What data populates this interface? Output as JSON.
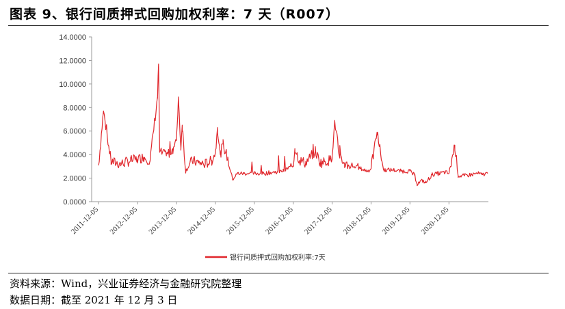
{
  "header": {
    "title": "图表 9、银行间质押式回购加权利率：7 天（R007）"
  },
  "footer": {
    "source": "资料来源：Wind，兴业证券经济与金融研究院整理",
    "date": "数据日期：截至 2021 年 12 月 3 日"
  },
  "chart_data": {
    "type": "line",
    "title": "",
    "xlabel": "",
    "ylabel": "",
    "ylim": [
      0,
      14
    ],
    "yticks": [
      "0.0000",
      "2.0000",
      "4.0000",
      "6.0000",
      "8.0000",
      "10.0000",
      "12.0000",
      "14.0000"
    ],
    "xticks": [
      "2011-12-05",
      "2012-12-05",
      "2013-12-05",
      "2014-12-05",
      "2015-12-05",
      "2016-12-05",
      "2017-12-05",
      "2018-12-05",
      "2019-12-05",
      "2020-12-05"
    ],
    "legend": "bottom-center",
    "grid": false,
    "series": [
      {
        "name": "银行间质押式回购加权利率:7天",
        "color": "#e0262b",
        "x": [
          "2011-12-05",
          "2012-01-20",
          "2012-03-31",
          "2012-06-30",
          "2012-09-30",
          "2012-12-05",
          "2013-02-01",
          "2013-04-01",
          "2013-06-10",
          "2013-06-20",
          "2013-06-30",
          "2013-09-01",
          "2013-11-01",
          "2013-12-05",
          "2013-12-23",
          "2014-01-15",
          "2014-01-28",
          "2014-03-01",
          "2014-05-01",
          "2014-07-01",
          "2014-09-01",
          "2014-11-01",
          "2014-12-05",
          "2014-12-25",
          "2015-01-20",
          "2015-02-15",
          "2015-04-01",
          "2015-05-15",
          "2015-07-01",
          "2015-09-01",
          "2015-12-05",
          "2016-03-01",
          "2016-06-01",
          "2016-09-01",
          "2016-12-05",
          "2016-12-20",
          "2017-02-01",
          "2017-04-01",
          "2017-06-30",
          "2017-08-15",
          "2017-10-01",
          "2017-12-05",
          "2017-12-29",
          "2018-02-15",
          "2018-04-01",
          "2018-06-30",
          "2018-09-01",
          "2018-11-01",
          "2018-12-05",
          "2019-01-30",
          "2019-04-01",
          "2019-06-30",
          "2019-09-01",
          "2019-12-05",
          "2020-01-20",
          "2020-02-10",
          "2020-04-01",
          "2020-05-01",
          "2020-07-01",
          "2020-09-01",
          "2020-11-01",
          "2020-12-05",
          "2021-01-29",
          "2021-03-01",
          "2021-05-01",
          "2021-07-01",
          "2021-09-01",
          "2021-10-10",
          "2021-12-03"
        ],
        "values": [
          3.1,
          7.7,
          3.4,
          3.2,
          3.5,
          3.6,
          3.8,
          3.5,
          8.9,
          11.7,
          4.2,
          3.9,
          4.5,
          5.2,
          8.9,
          4.6,
          6.5,
          2.6,
          3.5,
          3.3,
          3.2,
          3.5,
          4.2,
          6.3,
          4.0,
          4.9,
          3.6,
          1.9,
          2.4,
          2.4,
          2.4,
          2.4,
          2.5,
          2.6,
          3.1,
          4.5,
          3.5,
          3.3,
          4.3,
          3.3,
          3.4,
          3.6,
          6.9,
          3.7,
          3.2,
          3.0,
          2.8,
          2.6,
          2.8,
          5.9,
          2.7,
          2.7,
          2.6,
          2.6,
          2.2,
          1.5,
          1.8,
          1.6,
          2.3,
          2.4,
          2.5,
          2.4,
          4.8,
          2.2,
          2.2,
          2.3,
          2.4,
          2.3,
          2.4
        ]
      }
    ]
  }
}
